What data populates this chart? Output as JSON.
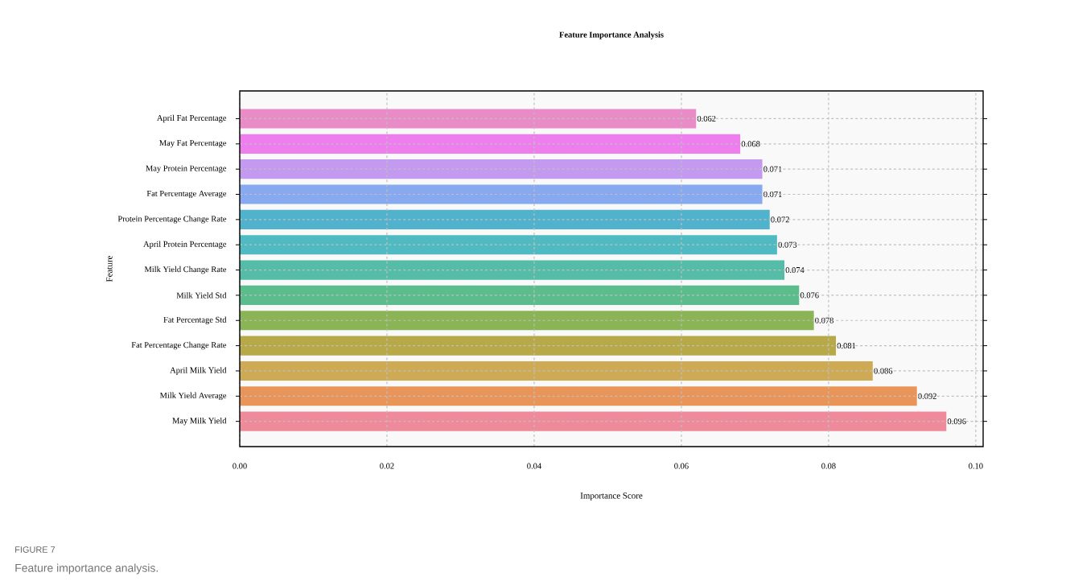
{
  "chart_data": {
    "type": "bar",
    "orientation": "horizontal",
    "title": "Feature Importance Analysis",
    "xlabel": "Importance Score",
    "ylabel": "Feature",
    "categories": [
      "April Fat Percentage",
      "May Fat Percentage",
      "May Protein Percentage",
      "Fat Percentage Average",
      "Protein Percentage Change Rate",
      "April Protein Percentage",
      "Milk Yield Change Rate",
      "Milk Yield Std",
      "Fat Percentage Std",
      "Fat Percentage Change Rate",
      "April Milk Yield",
      "Milk Yield Average",
      "May Milk Yield"
    ],
    "values": [
      0.062,
      0.068,
      0.071,
      0.071,
      0.072,
      0.073,
      0.074,
      0.076,
      0.078,
      0.081,
      0.086,
      0.092,
      0.096
    ],
    "value_labels": [
      "0.062",
      "0.068",
      "0.071",
      "0.071",
      "0.072",
      "0.073",
      "0.074",
      "0.076",
      "0.078",
      "0.081",
      "0.086",
      "0.092",
      "0.096"
    ],
    "colors": [
      "#e98bc6",
      "#ee7eee",
      "#c39af0",
      "#86a9f0",
      "#50b2cc",
      "#50bac2",
      "#55bca8",
      "#5cbd8c",
      "#8bb456",
      "#b8a948",
      "#cfaa55",
      "#e99559",
      "#ef8a9b"
    ],
    "xlim": [
      0,
      0.101
    ],
    "xticks": [
      {
        "value": 0,
        "label": "0.00"
      },
      {
        "value": 0.02,
        "label": "0.02"
      },
      {
        "value": 0.04,
        "label": "0.04"
      },
      {
        "value": 0.06,
        "label": "0.06"
      },
      {
        "value": 0.08,
        "label": "0.08"
      },
      {
        "value": 0.1,
        "label": "0.10"
      }
    ],
    "grid": true,
    "annotations": [
      "FIGURE 7",
      "Feature importance analysis."
    ]
  }
}
